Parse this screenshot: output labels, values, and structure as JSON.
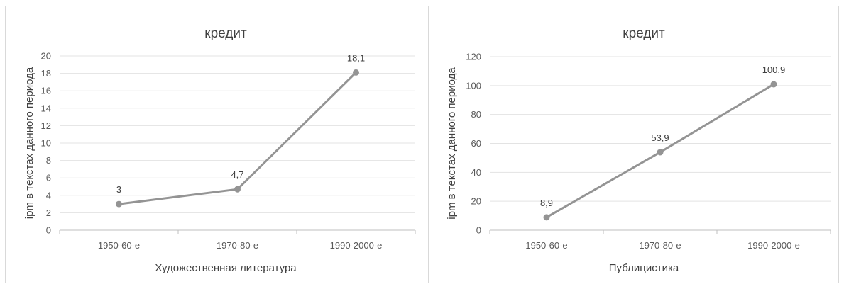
{
  "chart_data": [
    {
      "type": "line",
      "title": "кредит",
      "xlabel": "Художественная литература",
      "ylabel": "ipm в текстах данного периода",
      "categories": [
        "1950-60-е",
        "1970-80-е",
        "1990-2000-е"
      ],
      "values": [
        3,
        4.7,
        18.1
      ],
      "data_labels": [
        "3",
        "4,7",
        "18,1"
      ],
      "ylim": [
        0,
        20
      ],
      "yticks": [
        0,
        2,
        4,
        6,
        8,
        10,
        12,
        14,
        16,
        18,
        20
      ],
      "grid": true,
      "color": "#949494"
    },
    {
      "type": "line",
      "title": "кредит",
      "xlabel": "Публицистика",
      "ylabel": "ipm в текстах данного периода",
      "categories": [
        "1950-60-е",
        "1970-80-е",
        "1990-2000-е"
      ],
      "values": [
        8.9,
        53.9,
        100.9
      ],
      "data_labels": [
        "8,9",
        "53,9",
        "100,9"
      ],
      "ylim": [
        0,
        120
      ],
      "yticks": [
        0,
        20,
        40,
        60,
        80,
        100,
        120
      ],
      "grid": true,
      "color": "#949494"
    }
  ]
}
